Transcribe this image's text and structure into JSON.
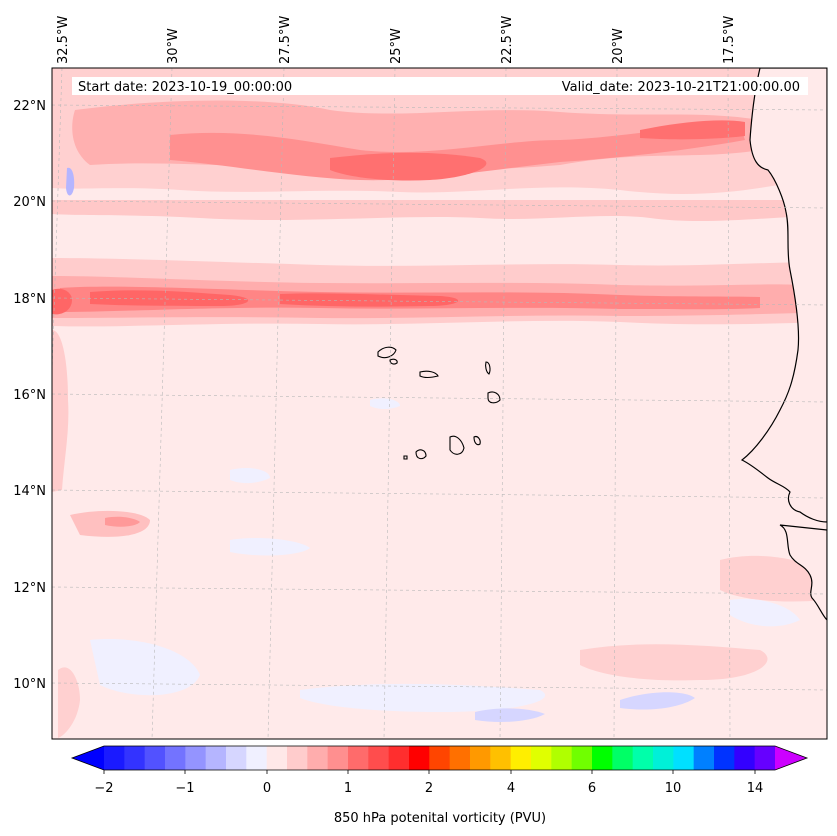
{
  "map": {
    "start_date_text": "Start date: 2023-10-19_00:00:00",
    "valid_date_text": "Valid_date: 2023-10-21T21:00:00.00",
    "longitude_labels": [
      "32.5°W",
      "30°W",
      "27.5°W",
      "25°W",
      "22.5°W",
      "20°W",
      "17.5°W"
    ],
    "latitude_labels": [
      "22°N",
      "20°N",
      "18°N",
      "16°N",
      "14°N",
      "12°N",
      "10°N"
    ]
  },
  "colorbar": {
    "title": "850 hPa potenital vorticity (PVU)",
    "tick_labels": [
      "−2",
      "−1",
      "0",
      "1",
      "2",
      "4",
      "6",
      "10",
      "14"
    ],
    "colors": [
      "#1a1aff",
      "#3333ff",
      "#5252ff",
      "#7373ff",
      "#9494ff",
      "#b5b5ff",
      "#d6d6ff",
      "#f0f0ff",
      "#ffe8e8",
      "#ffcccc",
      "#ffadad",
      "#ff8f8f",
      "#ff6b6b",
      "#ff4d4d",
      "#ff2e2e",
      "#ff0000",
      "#ff4500",
      "#ff7000",
      "#ff9900",
      "#ffc000",
      "#ffee00",
      "#e0ff00",
      "#b0ff00",
      "#70ff00",
      "#00ff00",
      "#00ff66",
      "#00ffaa",
      "#00f0d8",
      "#00e0ff",
      "#0080ff",
      "#0033ff",
      "#3300ff",
      "#6600ff"
    ],
    "under_color": "#0000ff",
    "over_color": "#cc00ff"
  }
}
